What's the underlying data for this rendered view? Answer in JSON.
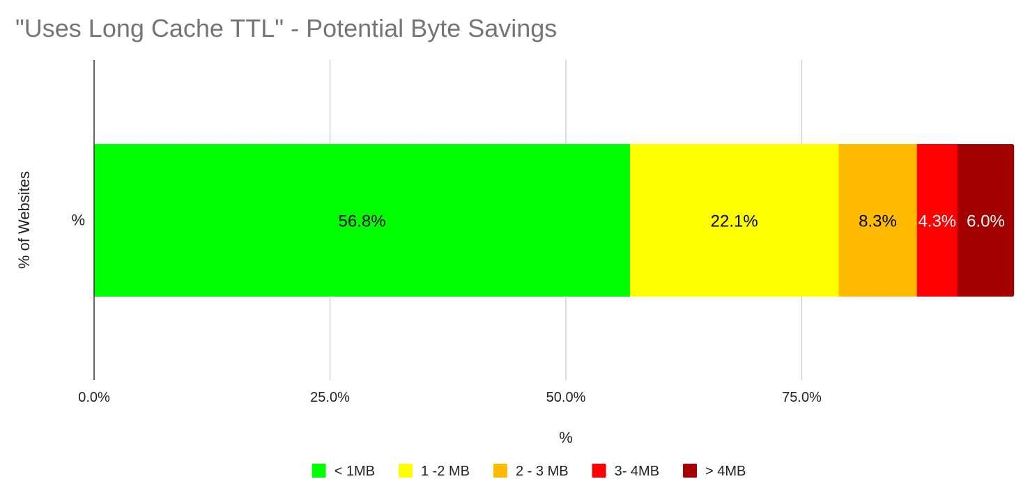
{
  "chart_data": {
    "type": "bar",
    "orientation": "horizontal",
    "stacked": true,
    "title": "\"Uses Long Cache TTL\"  - Potential Byte Savings",
    "xlabel": "%",
    "ylabel": "% of Websites",
    "categories": [
      "%"
    ],
    "xlim": [
      0,
      100
    ],
    "x_ticks": [
      "0.0%",
      "25.0%",
      "50.0%",
      "75.0%"
    ],
    "grid": true,
    "legend_position": "bottom",
    "series": [
      {
        "name": "< 1MB",
        "values": [
          56.8
        ],
        "label": "56.8%",
        "color": "#00ff00",
        "label_color": "#000000"
      },
      {
        "name": "1 -2 MB",
        "values": [
          22.1
        ],
        "label": "22.1%",
        "color": "#ffff00",
        "label_color": "#000000"
      },
      {
        "name": "2 - 3 MB",
        "values": [
          8.3
        ],
        "label": "8.3%",
        "color": "#ffbb00",
        "label_color": "#000000"
      },
      {
        "name": "3- 4MB",
        "values": [
          4.3
        ],
        "label": "4.3%",
        "color": "#ff0000",
        "label_color": "#ffffff"
      },
      {
        "name": "> 4MB",
        "values": [
          6.0
        ],
        "label": "6.0%",
        "color": "#a30000",
        "label_color": "#ffffff"
      }
    ],
    "colors": {
      "title": "#757575",
      "axis_text": "#222222",
      "gridline": "#cccccc",
      "axis_line": "#333333"
    }
  }
}
